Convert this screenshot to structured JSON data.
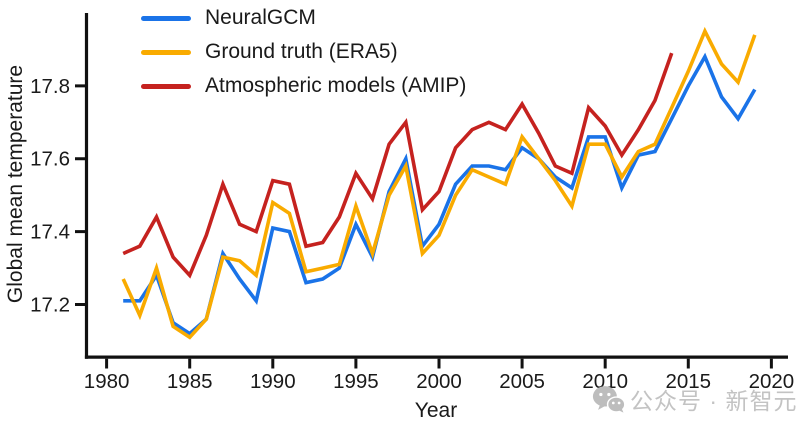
{
  "figure": {
    "ylabel": "Global mean temperature",
    "xlabel": "Year",
    "watermark_text": "公众号 · 新智元"
  },
  "legend": {
    "items": [
      {
        "label": "NeuralGCM",
        "color": "#1a73e8"
      },
      {
        "label": "Ground truth (ERA5)",
        "color": "#f9ab00"
      },
      {
        "label": "Atmospheric models (AMIP)",
        "color": "#c5221f"
      }
    ]
  },
  "colors": {
    "neuralgcm_blue": "#1a73e8",
    "era5_orange": "#f9ab00",
    "amip_red": "#c5221f",
    "axis_black": "#111111",
    "watermark_gray": "#c3c3c3"
  },
  "chart_data": {
    "type": "line",
    "title": "",
    "xlabel": "Year",
    "ylabel": "Global mean temperature",
    "grid": false,
    "legend_position": "upper left",
    "xlim": [
      1978.7,
      2021.0
    ],
    "ylim": [
      17.06,
      18.0
    ],
    "x_ticks": [
      "1980",
      "1985",
      "1990",
      "1995",
      "2000",
      "2005",
      "2010",
      "2015",
      "2020"
    ],
    "x_tick_values": [
      1980,
      1985,
      1990,
      1995,
      2000,
      2005,
      2010,
      2015,
      2020
    ],
    "y_ticks": [
      "17.2",
      "17.4",
      "17.6",
      "17.8"
    ],
    "y_tick_values": [
      17.2,
      17.4,
      17.6,
      17.8
    ],
    "series": [
      {
        "name": "NeuralGCM",
        "color": "#1a73e8",
        "x": [
          1981,
          1982,
          1983,
          1984,
          1985,
          1986,
          1987,
          1988,
          1989,
          1990,
          1991,
          1992,
          1993,
          1994,
          1995,
          1996,
          1997,
          1998,
          1999,
          2000,
          2001,
          2002,
          2003,
          2004,
          2005,
          2006,
          2007,
          2008,
          2009,
          2010,
          2011,
          2012,
          2013,
          2014,
          2015,
          2016,
          2017,
          2018,
          2019
        ],
        "values": [
          17.21,
          17.21,
          17.28,
          17.15,
          17.12,
          17.16,
          17.34,
          17.27,
          17.21,
          17.41,
          17.4,
          17.26,
          17.27,
          17.3,
          17.42,
          17.33,
          17.51,
          17.6,
          17.36,
          17.42,
          17.53,
          17.58,
          17.58,
          17.57,
          17.63,
          17.6,
          17.55,
          17.52,
          17.66,
          17.66,
          17.52,
          17.61,
          17.62,
          17.71,
          17.8,
          17.88,
          17.77,
          17.71,
          17.79
        ]
      },
      {
        "name": "Ground truth (ERA5)",
        "color": "#f9ab00",
        "x": [
          1981,
          1982,
          1983,
          1984,
          1985,
          1986,
          1987,
          1988,
          1989,
          1990,
          1991,
          1992,
          1993,
          1994,
          1995,
          1996,
          1997,
          1998,
          1999,
          2000,
          2001,
          2002,
          2003,
          2004,
          2005,
          2006,
          2007,
          2008,
          2009,
          2010,
          2011,
          2012,
          2013,
          2014,
          2015,
          2016,
          2017,
          2018,
          2019
        ],
        "values": [
          17.27,
          17.17,
          17.3,
          17.14,
          17.11,
          17.16,
          17.33,
          17.32,
          17.28,
          17.48,
          17.45,
          17.29,
          17.3,
          17.31,
          17.47,
          17.34,
          17.5,
          17.58,
          17.34,
          17.39,
          17.5,
          17.57,
          17.55,
          17.53,
          17.66,
          17.6,
          17.54,
          17.47,
          17.64,
          17.64,
          17.55,
          17.62,
          17.64,
          17.74,
          17.84,
          17.95,
          17.86,
          17.81,
          17.94
        ]
      },
      {
        "name": "Atmospheric models (AMIP)",
        "color": "#c5221f",
        "x": [
          1981,
          1982,
          1983,
          1984,
          1985,
          1986,
          1987,
          1988,
          1989,
          1990,
          1991,
          1992,
          1993,
          1994,
          1995,
          1996,
          1997,
          1998,
          1999,
          2000,
          2001,
          2002,
          2003,
          2004,
          2005,
          2006,
          2007,
          2008,
          2009,
          2010,
          2011,
          2012,
          2013,
          2014
        ],
        "values": [
          17.34,
          17.36,
          17.44,
          17.33,
          17.28,
          17.39,
          17.53,
          17.42,
          17.4,
          17.54,
          17.53,
          17.36,
          17.37,
          17.44,
          17.56,
          17.49,
          17.64,
          17.7,
          17.46,
          17.51,
          17.63,
          17.68,
          17.7,
          17.68,
          17.75,
          17.67,
          17.58,
          17.56,
          17.74,
          17.69,
          17.61,
          17.68,
          17.76,
          17.89
        ]
      }
    ]
  }
}
